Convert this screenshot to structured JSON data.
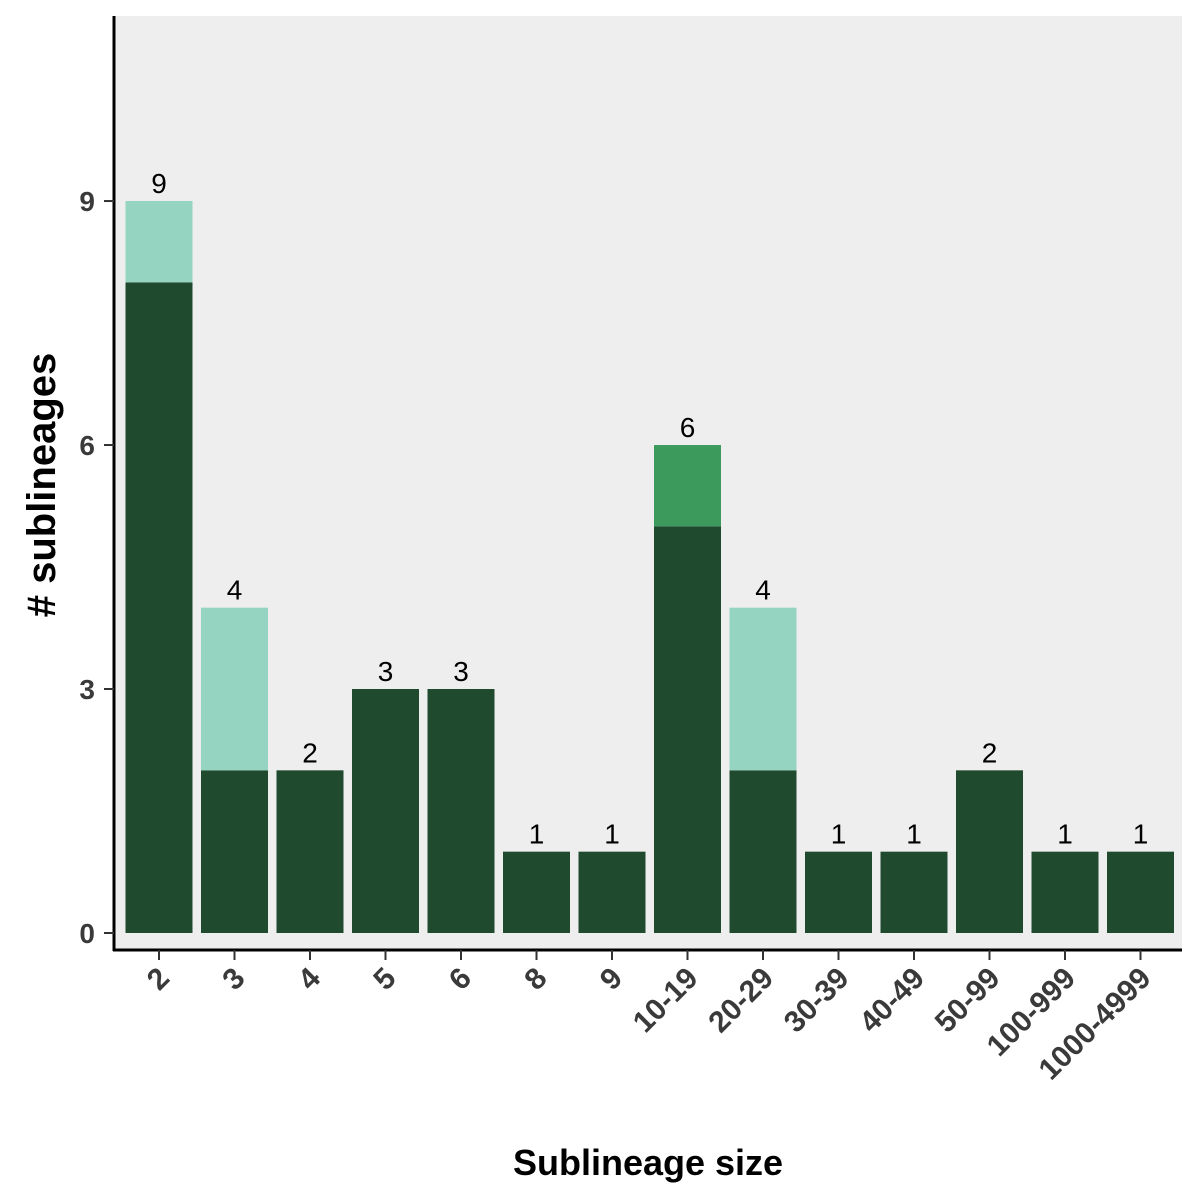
{
  "chart_data": {
    "type": "bar",
    "stacked": true,
    "title": "",
    "xlabel": "Sublineage size",
    "ylabel": "# sublineages",
    "categories": [
      "2",
      "3",
      "4",
      "5",
      "6",
      "8",
      "9",
      "10-19",
      "20-29",
      "30-39",
      "40-49",
      "50-99",
      "100-999",
      "1000-4999"
    ],
    "series": [
      {
        "color": "#1f4a2d",
        "values": [
          8,
          2,
          2,
          3,
          3,
          1,
          1,
          5,
          2,
          1,
          1,
          2,
          1,
          1
        ]
      },
      {
        "color": "#94d4c1",
        "values": [
          1,
          2,
          0,
          0,
          0,
          0,
          0,
          0,
          2,
          0,
          0,
          0,
          0,
          0
        ]
      },
      {
        "color": "#3d9a5d",
        "values": [
          0,
          0,
          0,
          0,
          0,
          0,
          0,
          1,
          0,
          0,
          0,
          0,
          0,
          0
        ]
      }
    ],
    "totals": [
      9,
      4,
      2,
      3,
      3,
      1,
      1,
      6,
      4,
      1,
      1,
      2,
      1,
      1
    ],
    "yticks": [
      0,
      3,
      6,
      9
    ],
    "ylim": [
      0,
      11.2
    ],
    "panel_background": "#eeeeee",
    "grid": false,
    "legend": "none"
  }
}
